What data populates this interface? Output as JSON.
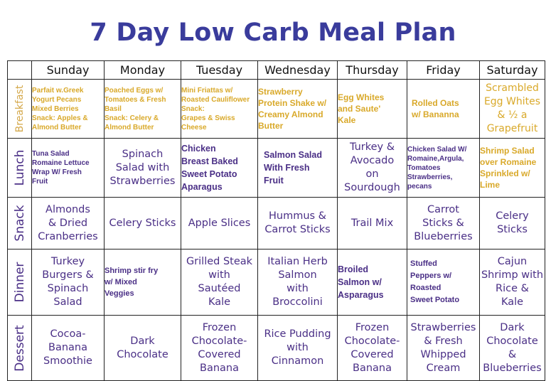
{
  "title": "7 Day Low Carb Meal Plan",
  "days": [
    "Sunday",
    "Monday",
    "Tuesday",
    "Wednesday",
    "Thursday",
    "Friday",
    "Saturday"
  ],
  "rows": [
    {
      "label": "Breakfast",
      "cells": [
        "Parfait w.Greek\nYogurt Pecans\nMixed Berries\nSnack: Apples &\nAlmond Butter",
        "Poached Eggs w/\nTomatoes & Fresh\nBasil\nSnack: Celery &\nAlmond Butter",
        "Mini Friattas w/\nRoasted Cauliflower\nSnack:\nGrapes & Swiss\nCheese",
        "Strawberry\nProtein Shake w/\nCreamy Almond\nButter",
        "Egg Whites\nand Saute'\nKale",
        "Rolled Oats\nw/ Bananna",
        "Scrambled\nEgg Whites\n& ½ a\nGrapefruit"
      ]
    },
    {
      "label": "Lunch",
      "cells": [
        "Tuna Salad\nRomaine Lettuce\nWrap W/ Fresh\nFruit",
        "Spinach\nSalad with\nStrawberries",
        "Chicken\nBreast Baked\nSweet Potato\nAparagus",
        "Salmon Salad\nWith Fresh\nFruit",
        "Turkey &\nAvocado\non\nSourdough",
        "Chicken Salad W/\nRomaine,Argula,\nTomatoes\nStrawberries,\npecans",
        "Shrimp Salad\nover Romaine\nSprinkled w/\nLime"
      ]
    },
    {
      "label": "Snack",
      "cells": [
        "Almonds\n& Dried\nCranberries",
        "Celery Sticks",
        "Apple Slices",
        "Hummus &\nCarrot Sticks",
        "Trail Mix",
        "Carrot\nSticks &\nBlueberries",
        "Celery\nSticks"
      ]
    },
    {
      "label": "Dinner",
      "cells": [
        "Turkey\nBurgers &\nSpinach\nSalad",
        "Shrimp stir fry\nw/ Mixed\nVeggies",
        "Grilled Steak\nwith\nSautéed\nKale",
        "Italian Herb\nSalmon\nwith\nBroccolini",
        "Broiled\nSalmon w/\nAsparagus",
        "Stuffed\nPeppers w/\nRoasted\nSweet Potato",
        "Cajun\nShrimp with\nRice &\nKale"
      ]
    },
    {
      "label": "Dessert",
      "cells": [
        "Cocoa-\nBanana\nSmoothie",
        "Dark\nChocolate",
        "Frozen\nChocolate-\nCovered\nBanana",
        "Rice Pudding\nwith\nCinnamon",
        "Frozen\nChocolate-\nCovered\nBanana",
        "Strawberries\n& Fresh\nWhipped\nCream",
        "Dark\nChocolate\n&\nBlueberries"
      ]
    }
  ]
}
